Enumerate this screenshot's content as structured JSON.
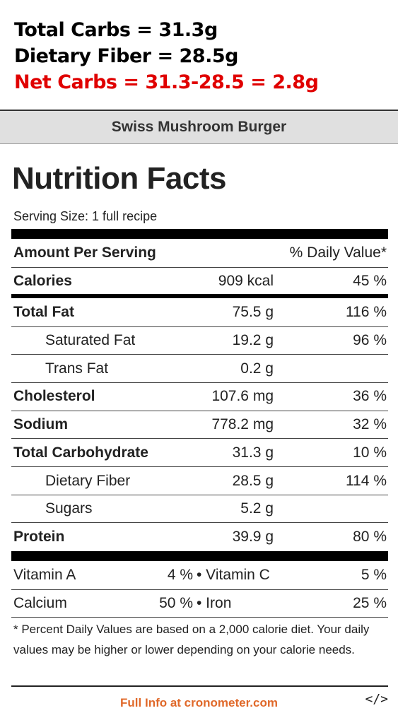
{
  "notes": {
    "total_carbs": "Total Carbs = 31.3g",
    "dietary_fiber": "Dietary Fiber = 28.5g",
    "net_carbs": "Net Carbs = 31.3-28.5 = 2.8g"
  },
  "card": {
    "recipe_name": "Swiss Mushroom Burger",
    "title": "Nutrition Facts",
    "serving_size": "Serving Size: 1 full recipe",
    "amount_per_serving": "Amount Per Serving",
    "daily_value_header": "% Daily Value*"
  },
  "rows": [
    {
      "label": "Calories",
      "amount": "909 kcal",
      "dv": "45 %"
    },
    {
      "label": "Total Fat",
      "amount": "75.5 g",
      "dv": "116 %"
    },
    {
      "label": "Saturated Fat",
      "amount": "19.2 g",
      "dv": "96 %"
    },
    {
      "label": "Trans Fat",
      "amount": "0.2 g",
      "dv": ""
    },
    {
      "label": "Cholesterol",
      "amount": "107.6 mg",
      "dv": "36 %"
    },
    {
      "label": "Sodium",
      "amount": "778.2 mg",
      "dv": "32 %"
    },
    {
      "label": "Total Carbohydrate",
      "amount": "31.3 g",
      "dv": "10 %"
    },
    {
      "label": "Dietary Fiber",
      "amount": "28.5 g",
      "dv": "114 %"
    },
    {
      "label": "Sugars",
      "amount": "5.2 g",
      "dv": ""
    },
    {
      "label": "Protein",
      "amount": "39.9 g",
      "dv": "80 %"
    }
  ],
  "vitamins": {
    "vitamin_a_label": "Vitamin A",
    "vitamin_a_value": "4 %",
    "vitamin_c_label": "• Vitamin C",
    "vitamin_c_value": "5 %",
    "calcium_label": "Calcium",
    "calcium_value": "50 %",
    "iron_label": "• Iron",
    "iron_value": "25 %"
  },
  "footnote": "* Percent Daily Values are based on a 2,000 calorie diet. Your daily values may be higher or lower depending on your calorie needs.",
  "links": {
    "full_info": "Full Info at cronometer.com",
    "embed": "</>"
  },
  "colors": {
    "net_carbs": "#e00000",
    "link": "#e0692a",
    "title_bar": "#e0e0e0"
  }
}
